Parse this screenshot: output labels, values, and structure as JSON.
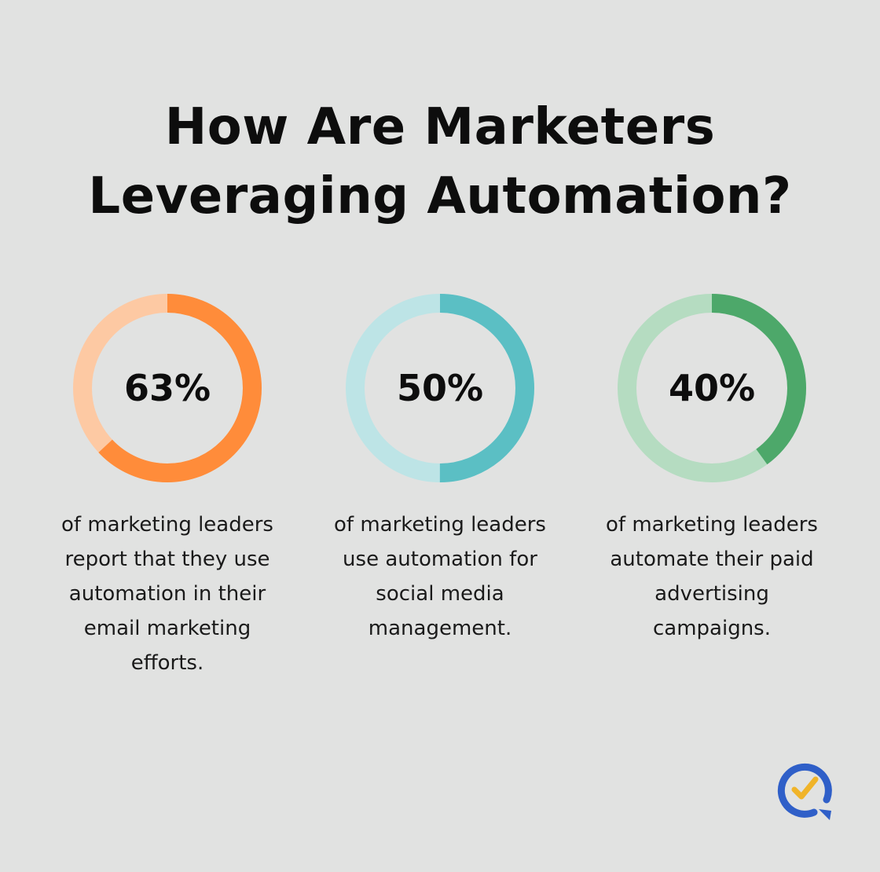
{
  "title": "How Are Marketers Leveraging Automation?",
  "chart_data": {
    "type": "donut",
    "title": "How Are Marketers Leveraging Automation?",
    "items": [
      {
        "value": 63,
        "label": "63%",
        "description": "of marketing leaders report that they use automation in their email marketing efforts.",
        "color": "#ff8c3a",
        "track_color": "#fdc9a3"
      },
      {
        "value": 50,
        "label": "50%",
        "description": "of marketing leaders use automation for social media management.",
        "color": "#5bbfc4",
        "track_color": "#bde4e6"
      },
      {
        "value": 40,
        "label": "40%",
        "description": "of marketing leaders automate their paid advertising campaigns.",
        "color": "#4da86a",
        "track_color": "#b5dcc1"
      }
    ]
  },
  "logo": {
    "icon": "checkmark-chat-logo",
    "ring_color": "#2f5fc8",
    "check_color": "#f0b429"
  }
}
